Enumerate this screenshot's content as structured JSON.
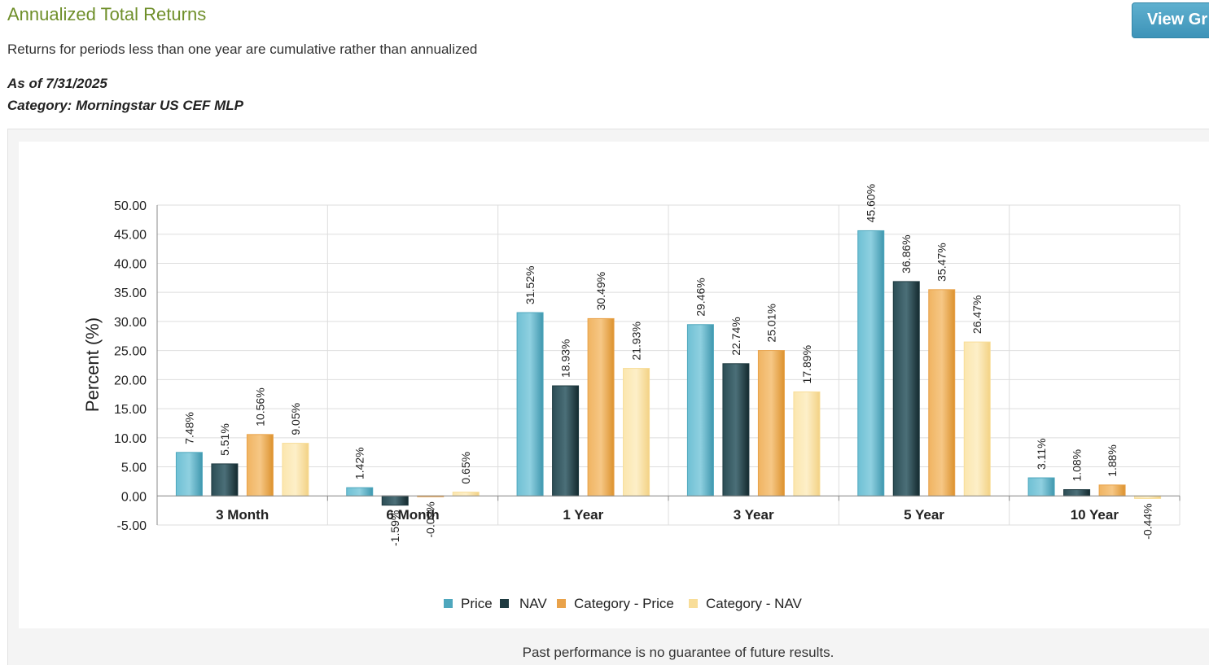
{
  "header": {
    "title": "Annualized Total Returns",
    "note": "Returns for periods less than one year are cumulative rather than annualized",
    "as_of": "As of 7/31/2025",
    "category": "Category: Morningstar US CEF MLP",
    "view_button_label": "View Gr"
  },
  "footer": {
    "disclaimer": "Past performance is no guarantee of future results."
  },
  "colors": {
    "price": "#4ea7bd",
    "nav": "#1e3a40",
    "category_price": "#e9a24a",
    "category_nav": "#f8dd98"
  },
  "chart_data": {
    "type": "bar",
    "ylabel": "Percent (%)",
    "xlabel": "",
    "ylim": [
      -5,
      50
    ],
    "ytick_step": 5,
    "ytick_labels": [
      "-5.00",
      "0.00",
      "5.00",
      "10.00",
      "15.00",
      "20.00",
      "25.00",
      "30.00",
      "35.00",
      "40.00",
      "45.00",
      "50.00"
    ],
    "grid": true,
    "legend_position": "bottom-center",
    "categories": [
      "3 Month",
      "6 Month",
      "1 Year",
      "3 Year",
      "5 Year",
      "10 Year"
    ],
    "series": [
      {
        "name": "Price",
        "color_key": "price",
        "values": [
          7.48,
          1.42,
          31.52,
          29.46,
          45.6,
          3.11
        ],
        "labels": [
          "7.48%",
          "1.42%",
          "31.52%",
          "29.46%",
          "45.60%",
          "3.11%"
        ]
      },
      {
        "name": "NAV",
        "color_key": "nav",
        "values": [
          5.51,
          -1.59,
          18.93,
          22.74,
          36.86,
          1.08
        ],
        "labels": [
          "5.51%",
          "-1.59%",
          "18.93%",
          "22.74%",
          "36.86%",
          "1.08%"
        ]
      },
      {
        "name": "Category - Price",
        "color_key": "category_price",
        "values": [
          10.56,
          -0.09,
          30.49,
          25.01,
          35.47,
          1.88
        ],
        "labels": [
          "10.56%",
          "-0.09%",
          "30.49%",
          "25.01%",
          "35.47%",
          "1.88%"
        ]
      },
      {
        "name": "Category - NAV",
        "color_key": "category_nav",
        "values": [
          9.05,
          0.65,
          21.93,
          17.89,
          26.47,
          -0.44
        ],
        "labels": [
          "9.05%",
          "0.65%",
          "21.93%",
          "17.89%",
          "26.47%",
          "-0.44%"
        ]
      }
    ]
  }
}
